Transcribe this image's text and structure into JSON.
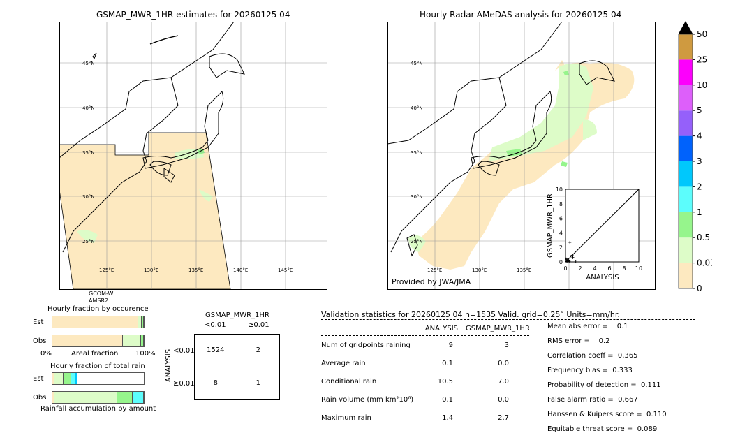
{
  "left_map": {
    "title": "GSMAP_MWR_1HR estimates for 20260125 04",
    "sensor_label": [
      "GCOM-W",
      "AMSR2"
    ]
  },
  "right_map": {
    "title": "Hourly Radar-AMeDAS analysis for 20260125 04",
    "credit": "Provided by JWA/JMA"
  },
  "map_axes": {
    "lat_labels": [
      "45°N",
      "40°N",
      "35°N",
      "30°N",
      "25°N"
    ],
    "lon_labels": [
      "125°E",
      "130°E",
      "135°E",
      "140°E",
      "145°E"
    ]
  },
  "colorbar": {
    "ticks": [
      "0",
      "0.01",
      "0.5",
      "1",
      "2",
      "3",
      "4",
      "5",
      "10",
      "25",
      "50"
    ],
    "colors": [
      "#fde9c0",
      "#ddfcc8",
      "#96f58c",
      "#5cfdfc",
      "#00c8fc",
      "#0062fc",
      "#9560fa",
      "#dd5ffa",
      "#fc00fc",
      "#cf9a40"
    ],
    "extend_color": "#000000"
  },
  "chart_data": [
    {
      "type": "scatter",
      "xlabel": "ANALYSIS",
      "ylabel": "GSMAP_MWR_1HR",
      "xlim": [
        0,
        10
      ],
      "ylim": [
        0,
        10
      ],
      "xticks": [
        "0",
        "2",
        "4",
        "6",
        "8",
        "10"
      ],
      "yticks": [
        "0",
        "2",
        "4",
        "6",
        "8",
        "10"
      ],
      "points": [
        [
          0.6,
          2.7
        ],
        [
          0.9,
          0.9
        ],
        [
          1.0,
          0.6
        ],
        [
          0.3,
          0.3
        ],
        [
          0.2,
          0.1
        ],
        [
          0.4,
          0.2
        ],
        [
          1.4,
          0.0
        ],
        [
          0.1,
          0.4
        ],
        [
          0.5,
          0.1
        ]
      ]
    },
    {
      "type": "bar",
      "title": "Hourly fraction by occurence",
      "categories": [
        "Est",
        "Obs"
      ],
      "xlabel": "Areal fraction",
      "xticks": [
        "0%",
        "100%"
      ],
      "series": [
        {
          "color": "#fde9c0",
          "values": [
            95,
            78
          ]
        },
        {
          "color": "#ddfcc8",
          "values": [
            3.5,
            19.5
          ]
        },
        {
          "color": "#96f58c",
          "values": [
            1.5,
            2.5
          ]
        }
      ]
    },
    {
      "type": "bar",
      "title": "Hourly fraction of total rain",
      "categories": [
        "Est",
        "Obs"
      ],
      "xlabel": "Rainfall accumulation by amount",
      "series": [
        {
          "color": "#fde9c0",
          "values": [
            1.5,
            1.5
          ]
        },
        {
          "color": "#ddfcc8",
          "values": [
            9,
            70
          ]
        },
        {
          "color": "#96f58c",
          "values": [
            7.5,
            16.5
          ]
        },
        {
          "color": "#5cfdfc",
          "values": [
            4,
            12
          ]
        },
        {
          "color": "#00c8fc",
          "values": [
            1.5,
            0
          ]
        }
      ]
    }
  ],
  "contingency": {
    "col_title": "GSMAP_MWR_1HR",
    "row_title": "ANALYSIS",
    "col_labels": [
      "<0.01",
      "≥0.01"
    ],
    "row_labels": [
      "<0.01",
      "≥0.01"
    ],
    "cells": [
      [
        "1524",
        "2"
      ],
      [
        "8",
        "1"
      ]
    ]
  },
  "validation": {
    "header": "Validation statistics for 20260125 04  n=1535 Valid. grid=0.25˚ Units=mm/hr.",
    "columns": [
      "ANALYSIS",
      "GSMAP_MWR_1HR"
    ],
    "rows": [
      {
        "label": "Num of gridpoints raining",
        "analysis": "9",
        "gsmap": "3"
      },
      {
        "label": "Average rain",
        "analysis": "0.1",
        "gsmap": "0.0"
      },
      {
        "label": "Conditional rain",
        "analysis": "10.5",
        "gsmap": "7.0"
      },
      {
        "label": "Rain volume (mm km²10⁶)",
        "analysis": "0.1",
        "gsmap": "0.0"
      },
      {
        "label": "Maximum rain",
        "analysis": "1.4",
        "gsmap": "2.7"
      }
    ],
    "scores": [
      "Mean abs error =    0.1",
      "RMS error =    0.2",
      "Correlation coeff =  0.365",
      "Frequency bias =  0.333",
      "Probability of detection =  0.111",
      "False alarm ratio =  0.667",
      "Hanssen & Kuipers score =  0.110",
      "Equitable threat score =  0.089"
    ]
  }
}
